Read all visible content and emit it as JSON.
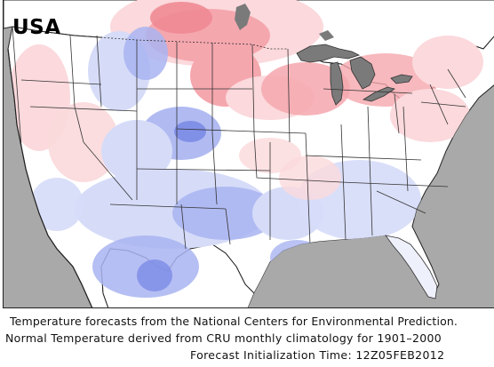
{
  "map": {
    "title": "USA",
    "colors": {
      "ocean": "#a9a9a9",
      "water_bodies": "#7a7a7a",
      "land_neutral": "#ffffff",
      "warm_light": "#fbd9dc",
      "warm_medium": "#f5a7ae",
      "warm_strong": "#ef8a93",
      "cool_light": "#d6dcf8",
      "cool_medium": "#a9b4f1",
      "cool_strong": "#7c8ce6",
      "borders": "#333333"
    },
    "anomaly_pattern": {
      "north_central_plains": "warm",
      "great_lakes_northeast": "warm",
      "rocky_mountains": "cool",
      "southern_plains_southwest": "cool",
      "southeast": "cool-neutral"
    }
  },
  "caption": {
    "line1": "Temperature  forecasts from the National Centers  for  Environmental  Prediction.",
    "line2": "Normal Temperature  derived  from  CRU  monthly  climatology  for  1901–2000",
    "line3": "Forecast  Initialization  Time:  12Z05FEB2012"
  }
}
